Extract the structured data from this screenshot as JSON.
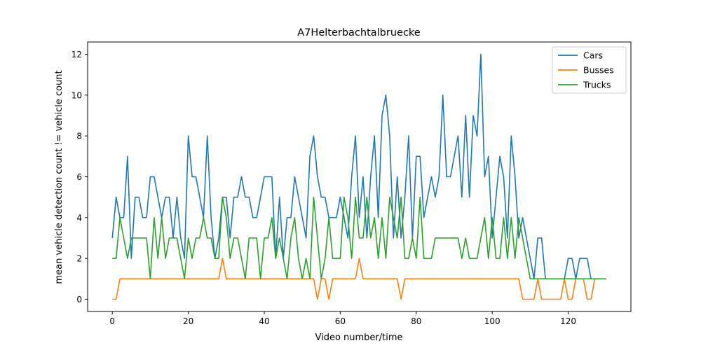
{
  "chart_data": {
    "type": "line",
    "title": "A7Helterbachtalbruecke",
    "xlabel": "Video number/time",
    "ylabel": "mean vehicle detection count != vehicle count",
    "xlim": [
      -6.5,
      136.5
    ],
    "ylim": [
      -0.6,
      12.6
    ],
    "xticks": [
      0,
      20,
      40,
      60,
      80,
      100,
      120
    ],
    "yticks": [
      0,
      2,
      4,
      6,
      8,
      10,
      12
    ],
    "grid": false,
    "legend_position": "top-right",
    "series": [
      {
        "name": "Cars",
        "color": "#1f77b4",
        "values": [
          3,
          5,
          4,
          4,
          7,
          2,
          5,
          5,
          4,
          4,
          6,
          6,
          5,
          4,
          5,
          5,
          3,
          5,
          3,
          2,
          8,
          6,
          6,
          5,
          4,
          8,
          4,
          2,
          3,
          5,
          5,
          3,
          5,
          5,
          6,
          5,
          5,
          4,
          4,
          5,
          6,
          6,
          6,
          2,
          5,
          2,
          4,
          4,
          6,
          5,
          4,
          3,
          7,
          8,
          6,
          5,
          5,
          4,
          4,
          4,
          5,
          4,
          3,
          6,
          8,
          4,
          6,
          3,
          6,
          8,
          4,
          9,
          10,
          8,
          3,
          6,
          3,
          5,
          8,
          3,
          7,
          7,
          4,
          5,
          6,
          5,
          6,
          10,
          6,
          6,
          7,
          8,
          5,
          9,
          5,
          9,
          8,
          12,
          6,
          7,
          3,
          5,
          7,
          6,
          3,
          8,
          6,
          3,
          4,
          3,
          2,
          1,
          3,
          3,
          1,
          1,
          1,
          1,
          1,
          1,
          2,
          2,
          1,
          2,
          2,
          2,
          1,
          1,
          1,
          1,
          1
        ]
      },
      {
        "name": "Busses",
        "color": "#ff7f0e",
        "values": [
          0,
          0,
          1,
          1,
          1,
          1,
          1,
          1,
          1,
          1,
          1,
          1,
          1,
          1,
          1,
          1,
          1,
          1,
          1,
          1,
          1,
          1,
          1,
          1,
          1,
          1,
          1,
          1,
          1,
          2,
          1,
          1,
          1,
          1,
          1,
          1,
          1,
          1,
          1,
          1,
          1,
          1,
          1,
          1,
          1,
          1,
          1,
          1,
          1,
          1,
          1,
          1,
          1,
          1,
          0,
          1,
          1,
          0,
          1,
          1,
          1,
          1,
          1,
          1,
          1,
          2,
          1,
          1,
          1,
          1,
          1,
          1,
          1,
          1,
          1,
          1,
          0,
          1,
          1,
          1,
          1,
          1,
          1,
          1,
          1,
          1,
          1,
          1,
          1,
          1,
          1,
          1,
          1,
          1,
          1,
          1,
          1,
          1,
          1,
          1,
          1,
          1,
          1,
          1,
          1,
          1,
          1,
          1,
          0,
          0,
          0,
          0,
          1,
          0,
          0,
          0,
          0,
          0,
          0,
          1,
          0,
          0,
          1,
          1,
          1,
          0,
          0,
          1,
          1,
          1,
          1
        ]
      },
      {
        "name": "Trucks",
        "color": "#2ca02c",
        "values": [
          2,
          2,
          4,
          3,
          2,
          3,
          3,
          3,
          3,
          3,
          1,
          4,
          2,
          4,
          2,
          3,
          3,
          3,
          2,
          1,
          3,
          2,
          3,
          3,
          4,
          3,
          3,
          2,
          2,
          5,
          4,
          2,
          3,
          3,
          2,
          1,
          3,
          3,
          3,
          1,
          3,
          3,
          4,
          2,
          3,
          2,
          1,
          3,
          4,
          2,
          1,
          2,
          1,
          5,
          3,
          1,
          2,
          4,
          2,
          2,
          2,
          5,
          4,
          2,
          5,
          3,
          3,
          5,
          3,
          4,
          2,
          4,
          2,
          5,
          4,
          3,
          5,
          2,
          2,
          3,
          2,
          5,
          2,
          2,
          2,
          3,
          3,
          3,
          3,
          3,
          3,
          3,
          2,
          3,
          2,
          2,
          2,
          3,
          4,
          2,
          4,
          2,
          2,
          4,
          2,
          4,
          2,
          4,
          3,
          2,
          1,
          1,
          1,
          1,
          1,
          1,
          1,
          1,
          1,
          1,
          1,
          1,
          1,
          1,
          1,
          1,
          1,
          1,
          1,
          1,
          1
        ]
      }
    ]
  }
}
